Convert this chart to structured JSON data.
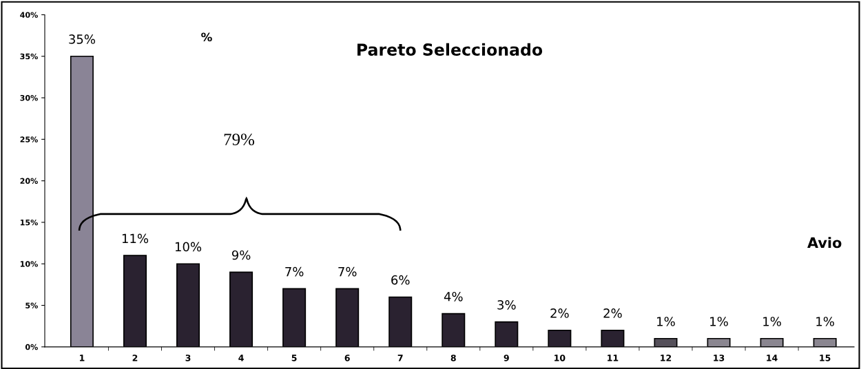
{
  "chart_data": {
    "type": "bar",
    "title": "Pareto Seleccionado",
    "categories": [
      "1",
      "2",
      "3",
      "4",
      "5",
      "6",
      "7",
      "8",
      "9",
      "10",
      "11",
      "12",
      "13",
      "14",
      "15"
    ],
    "values": [
      35,
      11,
      10,
      9,
      7,
      7,
      6,
      4,
      3,
      2,
      2,
      1,
      1,
      1,
      1
    ],
    "colors": [
      "#8a8496",
      "#2a2230",
      "#2a2230",
      "#2a2230",
      "#2a2230",
      "#2a2230",
      "#2a2230",
      "#2a2230",
      "#2a2230",
      "#2a2230",
      "#2a2230",
      "#55505a",
      "#8a8690",
      "#8a8690",
      "#8a8690"
    ],
    "value_labels": [
      "35%",
      "11%",
      "10%",
      "9%",
      "7%",
      "7%",
      "6%",
      "4%",
      "3%",
      "2%",
      "2%",
      "1%",
      "1%",
      "1%",
      "1%"
    ],
    "ylim": [
      0,
      40
    ],
    "yticks": [
      {
        "value": 0,
        "label": "0%"
      },
      {
        "value": 5,
        "label": "5%"
      },
      {
        "value": 10,
        "label": "10%"
      },
      {
        "value": 15,
        "label": "15%"
      },
      {
        "value": 20,
        "label": "20%"
      },
      {
        "value": 25,
        "label": "25%"
      },
      {
        "value": 30,
        "label": "30%"
      },
      {
        "value": 35,
        "label": "35%"
      },
      {
        "value": 40,
        "label": "40%"
      }
    ],
    "annotations": [
      "%",
      "79%",
      "Avio"
    ],
    "grid": false,
    "legend": false
  }
}
